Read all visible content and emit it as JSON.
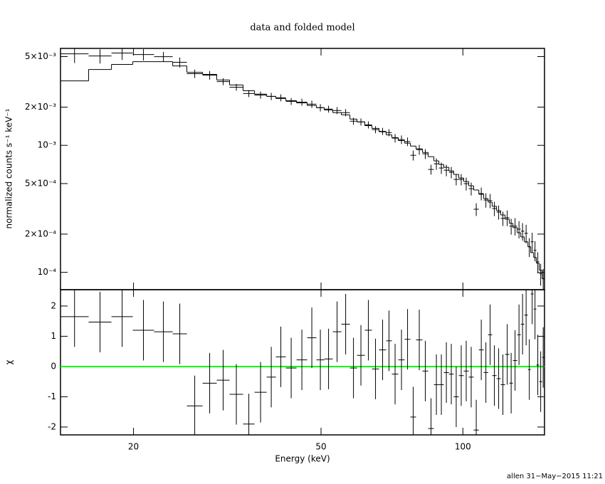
{
  "chart_data": {
    "type": "line",
    "title": "data and folded model",
    "xlabel": "Energy (keV)",
    "xscale": "log",
    "xlim": [
      14,
      149
    ],
    "xticks": [
      20,
      50,
      100
    ],
    "bins": [
      14.0,
      16.06,
      17.96,
      19.93,
      22.12,
      24.22,
      25.96,
      28.03,
      30.04,
      31.98,
      34.17,
      36.13,
      38.33,
      40.1,
      42.1,
      44.36,
      46.73,
      48.89,
      50.8,
      52.96,
      55.23,
      57.58,
      59.61,
      61.93,
      64.12,
      66.39,
      68.74,
      70.68,
      72.93,
      75.25,
      77.37,
      79.55,
      82.08,
      84.4,
      86.79,
      88.93,
      91.1,
      93.4,
      95.6,
      98.0,
      100.4,
      102.9,
      105.4,
      108.1,
      110.7,
      113.1,
      115.4,
      117.9,
      120.3,
      122.9,
      125.5,
      127.7,
      130.4,
      132.7,
      135.0,
      137.4,
      139.3,
      141.3,
      143.2,
      145.2,
      147.3,
      148.8
    ],
    "panels": [
      {
        "ylabel": "normalized counts s⁻¹ keV⁻¹",
        "yscale": "log",
        "ylim": [
          7.3e-05,
          0.0058
        ],
        "yticks": [
          {
            "value": 0.0001,
            "label": "10⁻⁴"
          },
          {
            "value": 0.0002,
            "label": "2×10⁻⁴"
          },
          {
            "value": 0.0005,
            "label": "5×10⁻⁴"
          },
          {
            "value": 0.001,
            "label": "10⁻³"
          },
          {
            "value": 0.002,
            "label": "2×10⁻³"
          },
          {
            "value": 0.005,
            "label": "5×10⁻³"
          }
        ],
        "series": [
          {
            "style": "errorbar",
            "color": "#000000",
            "values": [
              0.00526,
              0.00506,
              0.00533,
              0.00519,
              0.00499,
              0.00451,
              0.00367,
              0.00357,
              0.00318,
              0.00287,
              0.00256,
              0.00249,
              0.00243,
              0.00237,
              0.00222,
              0.00219,
              0.00211,
              0.00198,
              0.00193,
              0.00188,
              0.00181,
              0.00155,
              0.00153,
              0.00145,
              0.00133,
              0.00129,
              0.00126,
              0.00114,
              0.00111,
              0.00107,
              0.000835,
              0.000926,
              0.000857,
              0.000646,
              0.000716,
              0.000663,
              0.000637,
              0.000613,
              0.000539,
              0.000539,
              0.000499,
              0.000456,
              0.000314,
              0.000417,
              0.000371,
              0.000367,
              0.000318,
              0.000298,
              0.000266,
              0.000269,
              0.000231,
              0.000231,
              0.000219,
              0.000211,
              0.000203,
              0.000159,
              0.000174,
              0.000149,
              0.000121,
              9.75e-05,
              8.91e-05
            ],
            "errors": [
              0.00081,
              0.00065,
              0.00062,
              0.00053,
              0.00045,
              0.00041,
              0.00028,
              0.00028,
              0.0002,
              0.00018,
              0.00016,
              0.00016,
              0.00016,
              0.00015,
              0.00014,
              0.00014,
              0.00014,
              0.00013,
              0.00012,
              0.00012,
              0.00012,
              0.0001,
              9.8e-05,
              9.3e-05,
              8.5e-05,
              8.3e-05,
              8.1e-05,
              8.8e-05,
              8.6e-05,
              8.3e-05,
              7.5e-05,
              8.3e-05,
              7.7e-05,
              5.8e-05,
              7.4e-05,
              6.8e-05,
              6.6e-05,
              6.3e-05,
              5.5e-05,
              5.5e-05,
              5.8e-05,
              5.3e-05,
              3.6e-05,
              4.8e-05,
              4.8e-05,
              4.7e-05,
              4.1e-05,
              3.8e-05,
              3.4e-05,
              3.8e-05,
              3.3e-05,
              3.6e-05,
              3.4e-05,
              3.3e-05,
              3.4e-05,
              2.7e-05,
              3.1e-05,
              2.7e-05,
              2.3e-05,
              1.9e-05,
              1.7e-05
            ]
          },
          {
            "style": "step",
            "color": "#000000",
            "values": [
              0.00322,
              0.00396,
              0.00434,
              0.00456,
              0.00456,
              0.00422,
              0.00376,
              0.00362,
              0.00327,
              0.00299,
              0.00269,
              0.00253,
              0.00243,
              0.00234,
              0.00225,
              0.00216,
              0.00206,
              0.00198,
              0.0019,
              0.00181,
              0.00174,
              0.00161,
              0.00153,
              0.00143,
              0.00136,
              0.00128,
              0.00121,
              0.00115,
              0.00109,
              0.00104,
              0.000987,
              0.000938,
              0.000879,
              0.000814,
              0.000754,
              0.000707,
              0.000671,
              0.000629,
              0.00059,
              0.000553,
              0.000519,
              0.00048,
              0.000445,
              0.000412,
              0.000381,
              0.000357,
              0.000331,
              0.000306,
              0.000283,
              0.000262,
              0.000243,
              0.000225,
              0.000205,
              0.00019,
              0.000174,
              0.000159,
              0.000143,
              0.000131,
              0.000118,
              0.000104,
              8.91e-05
            ]
          }
        ]
      },
      {
        "ylabel": "χ",
        "ylim": [
          -2.26,
          2.54
        ],
        "yticks": [
          -2,
          -1,
          0,
          1,
          2
        ],
        "hline": {
          "value": 0,
          "color": "#00ff00"
        },
        "series": [
          {
            "style": "errorbar",
            "color": "#000000",
            "values": [
              1.65,
              1.47,
              1.65,
              1.2,
              1.15,
              1.08,
              -1.3,
              -0.55,
              -0.45,
              -0.92,
              -1.9,
              -0.85,
              -0.35,
              0.32,
              -0.05,
              0.22,
              0.95,
              0.22,
              0.25,
              1.15,
              1.4,
              -0.05,
              0.37,
              1.2,
              -0.08,
              0.55,
              0.85,
              -0.25,
              0.22,
              0.9,
              -1.67,
              0.88,
              -0.15,
              -2.05,
              -0.6,
              -0.6,
              -0.2,
              -0.25,
              -1.0,
              -0.3,
              -0.15,
              -0.35,
              -2.1,
              0.55,
              -0.2,
              1.05,
              -0.3,
              -0.4,
              -0.6,
              0.4,
              -0.55,
              0.2,
              1.05,
              1.4,
              1.7,
              -0.1,
              2.4,
              1.9,
              0.05,
              -0.5,
              0.3
            ],
            "errors": [
              1,
              1,
              1,
              1,
              1,
              1,
              1,
              1,
              1,
              1,
              1,
              1,
              1,
              1,
              1,
              1,
              1,
              1,
              1,
              1,
              1,
              1,
              1,
              1,
              1,
              1,
              1,
              1,
              1,
              1,
              1,
              1,
              1,
              1,
              1,
              1,
              1,
              1,
              1,
              1,
              1,
              1,
              1,
              1,
              1,
              1,
              1,
              1,
              1,
              1,
              1,
              1,
              1,
              1,
              1,
              1,
              1,
              1,
              1,
              1,
              1
            ]
          }
        ]
      }
    ]
  },
  "footer": "allen 31−May−2015 11:21"
}
